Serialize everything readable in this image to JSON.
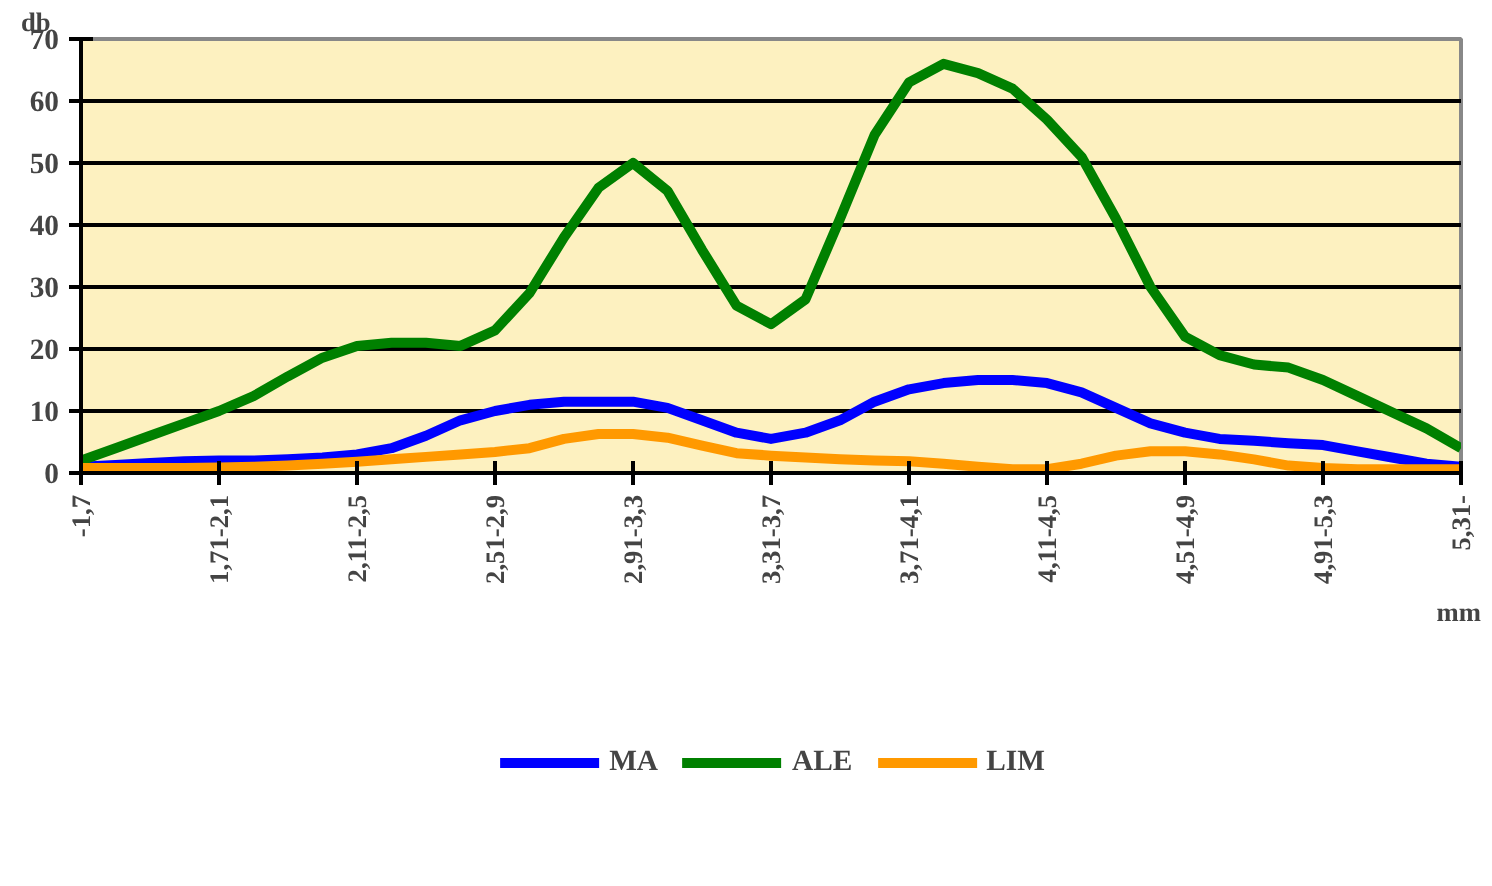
{
  "chart_data": {
    "type": "line",
    "xlabel": "mm",
    "ylabel": "db",
    "categories": [
      "-1,7",
      null,
      null,
      null,
      "1,71-2,1",
      null,
      null,
      null,
      "2,11-2,5",
      null,
      null,
      null,
      "2,51-2,9",
      null,
      null,
      null,
      "2,91-3,3",
      null,
      null,
      null,
      "3,31-3,7",
      null,
      null,
      null,
      "3,71-4,1",
      null,
      null,
      null,
      "4,11-4,5",
      null,
      null,
      null,
      "4,51-4,9",
      null,
      null,
      null,
      "4,91-5,3",
      null,
      null,
      null,
      "5,31-"
    ],
    "series": [
      {
        "name": "MA",
        "color": "#0000ff",
        "values": [
          1,
          1.3,
          1.6,
          1.9,
          2,
          2,
          2.2,
          2.5,
          3,
          4,
          6,
          8.5,
          10,
          11,
          11.5,
          11.5,
          11.5,
          10.5,
          8.5,
          6.5,
          5.5,
          6.5,
          8.5,
          11.5,
          13.5,
          14.5,
          15,
          15,
          14.5,
          13,
          10.5,
          8,
          6.5,
          5.5,
          5.2,
          4.8,
          4.5,
          3.5,
          2.5,
          1.5,
          1
        ]
      },
      {
        "name": "ALE",
        "color": "#008000",
        "values": [
          2,
          4,
          6,
          8,
          10,
          12.4,
          15.6,
          18.6,
          20.5,
          21,
          21,
          20.5,
          23,
          29,
          38,
          46,
          50,
          45.5,
          36,
          27,
          24,
          28,
          41,
          54.5,
          63,
          66,
          64.5,
          62,
          57,
          51,
          41,
          30,
          22,
          19,
          17.5,
          17,
          15,
          12.4,
          9.8,
          7.2,
          4
        ]
      },
      {
        "name": "LIM",
        "color": "#ff9900",
        "values": [
          0.8,
          0.8,
          0.8,
          0.8,
          0.9,
          1,
          1.2,
          1.5,
          1.8,
          2.2,
          2.6,
          3,
          3.4,
          4,
          5.5,
          6.3,
          6.3,
          5.7,
          4.4,
          3.2,
          2.8,
          2.5,
          2.2,
          2,
          1.9,
          1.5,
          1,
          0.6,
          0.6,
          1.5,
          2.8,
          3.5,
          3.5,
          3,
          2.2,
          1.2,
          0.8,
          0.6,
          0.6,
          0.6,
          0.6
        ]
      }
    ],
    "ylim": [
      0,
      70
    ],
    "yticks": [
      0,
      10,
      20,
      30,
      40,
      50,
      60,
      70
    ],
    "grid": "y",
    "legend": "bottom",
    "line_style": "solid",
    "marker": "none"
  }
}
